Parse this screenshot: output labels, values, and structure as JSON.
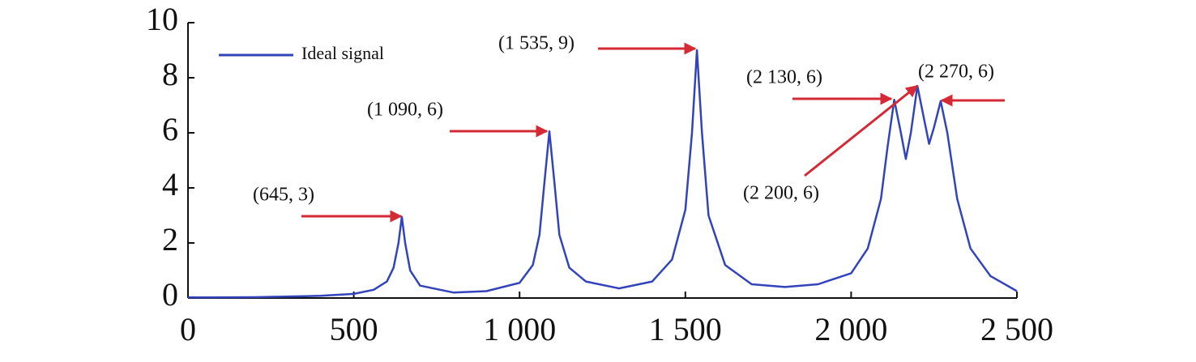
{
  "chart_data": {
    "type": "line",
    "x": [
      0,
      200,
      400,
      500,
      560,
      600,
      620,
      635,
      645,
      655,
      670,
      700,
      800,
      900,
      1000,
      1040,
      1060,
      1075,
      1090,
      1105,
      1120,
      1150,
      1200,
      1300,
      1400,
      1460,
      1500,
      1520,
      1535,
      1550,
      1570,
      1620,
      1700,
      1800,
      1900,
      2000,
      2050,
      2090,
      2110,
      2130,
      2150,
      2165,
      2180,
      2200,
      2220,
      2235,
      2250,
      2270,
      2290,
      2320,
      2360,
      2420,
      2500
    ],
    "series": [
      {
        "name": "Ideal signal",
        "color": "#3344bb",
        "values": [
          0.02,
          0.03,
          0.08,
          0.15,
          0.3,
          0.6,
          1.1,
          2.0,
          2.95,
          2.0,
          1.0,
          0.45,
          0.2,
          0.25,
          0.55,
          1.2,
          2.3,
          4.2,
          6.05,
          4.2,
          2.3,
          1.1,
          0.6,
          0.35,
          0.6,
          1.4,
          3.2,
          6.0,
          9.0,
          6.0,
          3.0,
          1.2,
          0.5,
          0.4,
          0.5,
          0.9,
          1.8,
          3.6,
          5.5,
          7.2,
          6.0,
          5.05,
          6.0,
          7.7,
          6.5,
          5.6,
          6.2,
          7.15,
          6.0,
          3.6,
          1.8,
          0.8,
          0.25
        ]
      }
    ],
    "xlim": [
      0,
      2500
    ],
    "xticks": [
      0,
      500,
      {
        "value": 1000,
        "label": "1 000"
      },
      {
        "value": 1500,
        "label": "1 500"
      },
      {
        "value": 2000,
        "label": "2 000"
      },
      {
        "value": 2500,
        "label": "2 500"
      }
    ],
    "ylim": [
      0,
      10
    ],
    "yticks": [
      0,
      2,
      4,
      6,
      8,
      10
    ],
    "legend": "upper left",
    "annotations": [
      "(645, 3)",
      "(1 090, 6)",
      "(1 535, 9)",
      "(2 130, 6)",
      "(2 270, 6)",
      "(2 200, 6)"
    ],
    "annotation_color": "#d42a35"
  }
}
